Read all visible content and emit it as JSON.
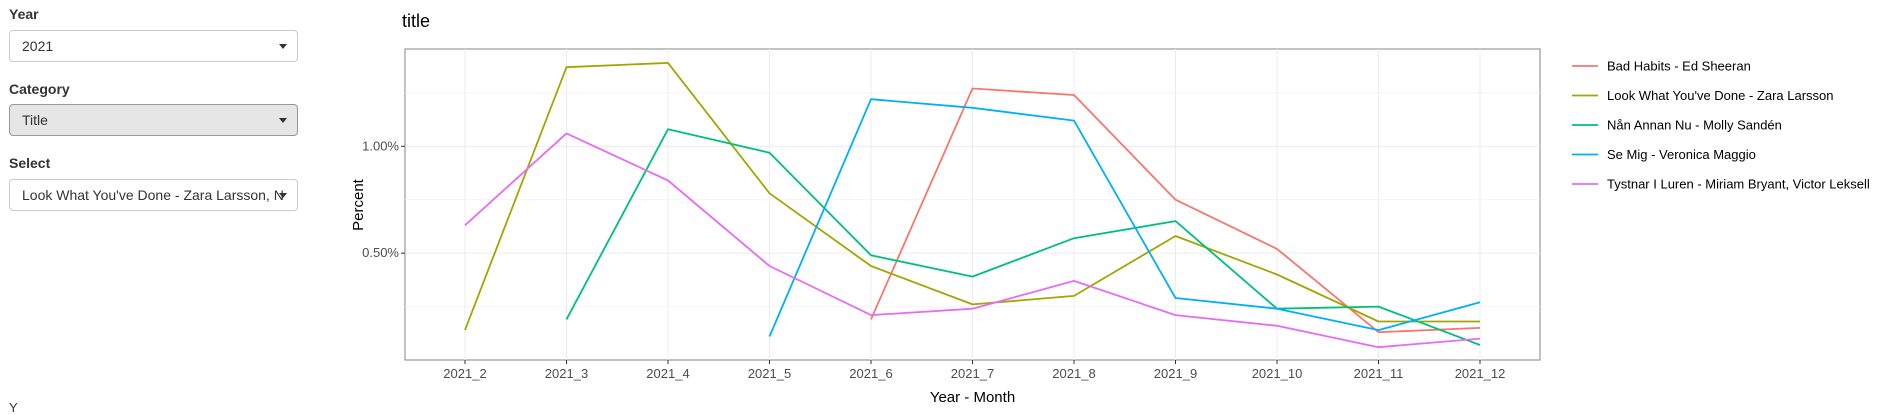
{
  "controls": {
    "year": {
      "label": "Year",
      "value": "2021"
    },
    "category": {
      "label": "Category",
      "value": "Title"
    },
    "select": {
      "label": "Select",
      "value": "Look What You've Done - Zara Larsson, N"
    },
    "stray_text": "Y"
  },
  "chart_data": {
    "type": "line",
    "title": "title",
    "xlabel": "Year - Month",
    "ylabel": "Percent",
    "categories": [
      "2021_2",
      "2021_3",
      "2021_4",
      "2021_5",
      "2021_6",
      "2021_7",
      "2021_8",
      "2021_9",
      "2021_10",
      "2021_11",
      "2021_12"
    ],
    "y_ticks": [
      {
        "value": 0.005,
        "label": "0.50%"
      },
      {
        "value": 0.01,
        "label": "1.00%"
      }
    ],
    "ylim": [
      0.0,
      0.01455
    ],
    "grid": true,
    "legend_position": "right",
    "series": [
      {
        "name": "Bad Habits - Ed Sheeran",
        "color": "#F8766D",
        "values": [
          null,
          null,
          null,
          null,
          0.0019,
          0.0127,
          0.0124,
          0.0075,
          0.0052,
          0.0013,
          0.0015
        ]
      },
      {
        "name": "Look What You've Done - Zara Larsson",
        "color": "#A3A500",
        "values": [
          0.0014,
          0.0137,
          0.0139,
          0.0078,
          0.0044,
          0.0026,
          0.003,
          0.0058,
          0.004,
          0.0018,
          0.0018
        ]
      },
      {
        "name": "Nån Annan Nu - Molly Sandén",
        "color": "#00BF7D",
        "values": [
          null,
          0.0019,
          0.0108,
          0.0097,
          0.0049,
          0.0039,
          0.0057,
          0.0065,
          0.0024,
          0.0025,
          0.0007
        ]
      },
      {
        "name": "Se Mig - Veronica Maggio",
        "color": "#00B0F6",
        "values": [
          null,
          null,
          null,
          0.0011,
          0.0122,
          0.0118,
          0.0112,
          0.0029,
          0.0024,
          0.0014,
          0.0027
        ]
      },
      {
        "name": "Tystnar I Luren - Miriam Bryant, Victor Leksell",
        "color": "#E76BF3",
        "values": [
          0.0063,
          0.0106,
          0.0084,
          0.0044,
          0.0021,
          0.0024,
          0.0037,
          0.0021,
          0.0016,
          0.0006,
          0.001
        ]
      }
    ]
  }
}
